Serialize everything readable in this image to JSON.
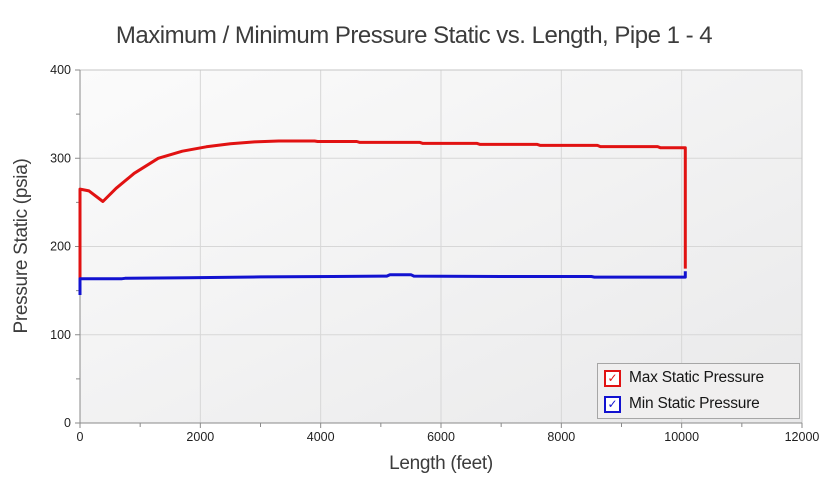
{
  "title": "Maximum / Minimum Pressure Static vs. Length, Pipe 1 - 4",
  "axes": {
    "x_label": "Length (feet)",
    "y_label": "Pressure Static (psia)"
  },
  "legend": {
    "checkmark": "✓",
    "items": [
      {
        "label": "Max Static Pressure",
        "checked": true
      },
      {
        "label": "Min Static Pressure",
        "checked": true
      }
    ]
  },
  "chart_data": {
    "type": "line",
    "title": "Maximum / Minimum Pressure Static vs. Length, Pipe 1 - 4",
    "xlabel": "Length (feet)",
    "ylabel": "Pressure Static (psia)",
    "xlim": [
      0,
      12000
    ],
    "ylim": [
      0,
      400
    ],
    "x_major_ticks": [
      0,
      2000,
      4000,
      6000,
      8000,
      10000,
      12000
    ],
    "x_minor_ticks": [
      1000,
      3000,
      5000,
      7000,
      9000,
      11000
    ],
    "y_major_ticks": [
      0,
      100,
      200,
      300,
      400
    ],
    "y_minor_ticks": [
      50,
      150,
      250,
      350
    ],
    "grid": true,
    "legend_position": "bottom-right",
    "plot_bg_from": "#fbfbfb",
    "plot_bg_to": "#e9e9ea",
    "grid_color": "#d7d7d7",
    "axis_color": "#8a8a8a",
    "border_color": "#c6c6c6",
    "tick_label_color": "#1f1f1f",
    "series": [
      {
        "name": "Max Static Pressure",
        "color": "#e11212",
        "points": [
          [
            0,
            163
          ],
          [
            0,
            265
          ],
          [
            150,
            263
          ],
          [
            380,
            251
          ],
          [
            600,
            266
          ],
          [
            900,
            283
          ],
          [
            1300,
            300
          ],
          [
            1700,
            308
          ],
          [
            2100,
            313
          ],
          [
            2500,
            316.5
          ],
          [
            2900,
            318.5
          ],
          [
            3300,
            319.5
          ],
          [
            3900,
            319.5
          ],
          [
            3950,
            319
          ],
          [
            4600,
            319
          ],
          [
            4650,
            318
          ],
          [
            5650,
            318
          ],
          [
            5700,
            316.8
          ],
          [
            6600,
            316.8
          ],
          [
            6650,
            315.7
          ],
          [
            7600,
            315.7
          ],
          [
            7650,
            314.6
          ],
          [
            8600,
            314.6
          ],
          [
            8650,
            313.2
          ],
          [
            9600,
            313.2
          ],
          [
            9650,
            311.8
          ],
          [
            10060,
            311.8
          ],
          [
            10060,
            175
          ]
        ]
      },
      {
        "name": "Min Static Pressure",
        "color": "#1212d0",
        "points": [
          [
            0,
            145
          ],
          [
            0,
            163.5
          ],
          [
            700,
            163.5
          ],
          [
            750,
            164
          ],
          [
            1800,
            164.5
          ],
          [
            3000,
            165.5
          ],
          [
            4200,
            166
          ],
          [
            5100,
            166.5
          ],
          [
            5150,
            168
          ],
          [
            5500,
            168
          ],
          [
            5550,
            166.5
          ],
          [
            7000,
            166
          ],
          [
            8500,
            166
          ],
          [
            8550,
            165.3
          ],
          [
            9900,
            165.3
          ],
          [
            10060,
            165.3
          ],
          [
            10060,
            172
          ]
        ]
      }
    ]
  }
}
